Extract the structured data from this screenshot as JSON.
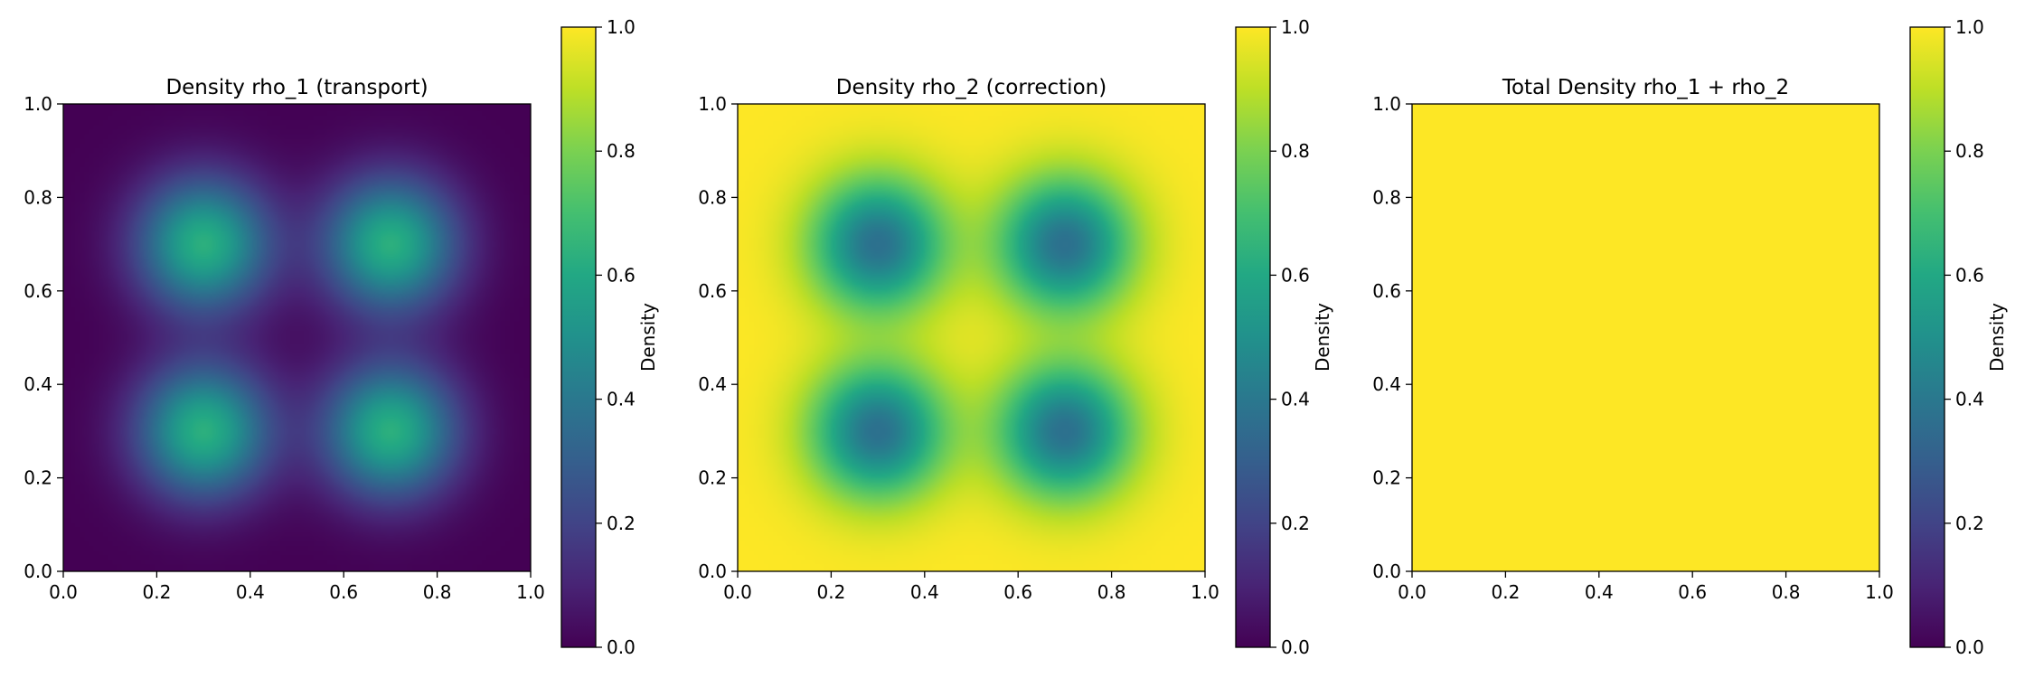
{
  "chart_data": [
    {
      "type": "heatmap",
      "title": "Density rho_1 (transport)",
      "xlim": [
        0.0,
        1.0
      ],
      "ylim": [
        0.0,
        1.0
      ],
      "xticks": [
        "0.0",
        "0.2",
        "0.4",
        "0.6",
        "0.8",
        "1.0"
      ],
      "yticks": [
        "0.0",
        "0.2",
        "0.4",
        "0.6",
        "0.8",
        "1.0"
      ],
      "field": {
        "description_of_values": "sum of four Gaussian blobs centered at the grid points, max ~0.65 at centers, ~0.02 at corners",
        "centers": [
          [
            0.3,
            0.3
          ],
          [
            0.7,
            0.3
          ],
          [
            0.3,
            0.7
          ],
          [
            0.7,
            0.7
          ]
        ],
        "peak": 0.63,
        "sigma": 0.1,
        "offset": 0.0
      },
      "colorbar": {
        "label": "Density",
        "vmin": 0.0,
        "vmax": 1.0,
        "ticks": [
          "0.0",
          "0.2",
          "0.4",
          "0.6",
          "0.8",
          "1.0"
        ]
      }
    },
    {
      "type": "heatmap",
      "title": "Density rho_2 (correction)",
      "xlim": [
        0.0,
        1.0
      ],
      "ylim": [
        0.0,
        1.0
      ],
      "xticks": [
        "0.0",
        "0.2",
        "0.4",
        "0.6",
        "0.8",
        "1.0"
      ],
      "yticks": [
        "0.0",
        "0.2",
        "0.4",
        "0.6",
        "0.8",
        "1.0"
      ],
      "field": {
        "description_of_values": "1 minus rho_1: ~0.35 at blob centers, ~0.98 at corners",
        "centers": [
          [
            0.3,
            0.3
          ],
          [
            0.7,
            0.3
          ],
          [
            0.3,
            0.7
          ],
          [
            0.7,
            0.7
          ]
        ],
        "peak": -0.63,
        "sigma": 0.1,
        "offset": 1.0
      },
      "colorbar": {
        "label": "Density",
        "vmin": 0.0,
        "vmax": 1.0,
        "ticks": [
          "0.0",
          "0.2",
          "0.4",
          "0.6",
          "0.8",
          "1.0"
        ]
      }
    },
    {
      "type": "heatmap",
      "title": "Total Density rho_1 + rho_2",
      "xlim": [
        0.0,
        1.0
      ],
      "ylim": [
        0.0,
        1.0
      ],
      "xticks": [
        "0.0",
        "0.2",
        "0.4",
        "0.6",
        "0.8",
        "1.0"
      ],
      "yticks": [
        "0.0",
        "0.2",
        "0.4",
        "0.6",
        "0.8",
        "1.0"
      ],
      "field": {
        "description_of_values": "uniform 1.0 everywhere",
        "centers": [],
        "peak": 0.0,
        "sigma": 0.1,
        "offset": 1.0
      },
      "colorbar": {
        "label": "Density",
        "vmin": 0.0,
        "vmax": 1.0,
        "ticks": [
          "0.0",
          "0.2",
          "0.4",
          "0.6",
          "0.8",
          "1.0"
        ]
      }
    }
  ],
  "colormap": "viridis"
}
